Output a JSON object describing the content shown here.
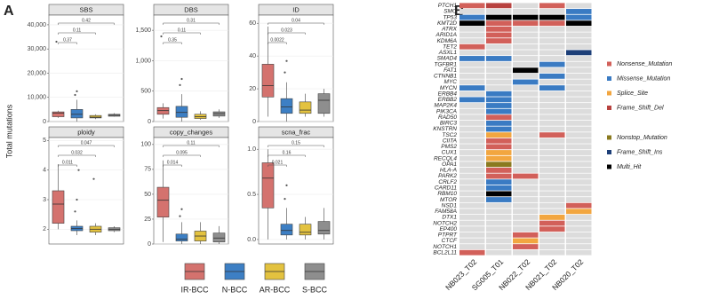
{
  "panel_labels": [
    "A",
    "B"
  ],
  "y_label": "Total mutations",
  "legend": [
    {
      "name": "IR-BCC",
      "color": "#d4726e"
    },
    {
      "name": "N-BCC",
      "color": "#3d7fc4"
    },
    {
      "name": "AR-BCC",
      "color": "#e3c23f"
    },
    {
      "name": "S-BCC",
      "color": "#8e8e8e"
    }
  ],
  "chart_data": [
    {
      "type": "box",
      "title": "SBS",
      "ylim": [
        0,
        44000
      ],
      "yticks": [
        0,
        {
          "value": 10000,
          "label": "10,000"
        },
        {
          "value": 20000,
          "label": "20,000"
        },
        {
          "value": 30000,
          "label": "30,000"
        },
        {
          "value": 40000,
          "label": "40,000"
        }
      ],
      "boxes": [
        {
          "min": 1500,
          "q1": 2000,
          "median": 3500,
          "q3": 4000,
          "max": 4500,
          "outliers": [
            33000
          ]
        },
        {
          "min": 0,
          "q1": 1500,
          "median": 3000,
          "q3": 5000,
          "max": 9000,
          "outliers": [
            11000,
            12500
          ]
        },
        {
          "min": 1000,
          "q1": 1500,
          "median": 1800,
          "q3": 2500,
          "max": 3000,
          "outliers": []
        },
        {
          "min": 2000,
          "q1": 2200,
          "median": 2600,
          "q3": 3000,
          "max": 3500,
          "outliers": []
        }
      ],
      "pvalues": [
        "0.37",
        "0.11",
        "0.42"
      ]
    },
    {
      "type": "box",
      "title": "DBS",
      "ylim": [
        0,
        1750
      ],
      "yticks": [
        0,
        500,
        {
          "value": 1000,
          "label": "1,000"
        },
        {
          "value": 1500,
          "label": "1,500"
        }
      ],
      "boxes": [
        {
          "min": 50,
          "q1": 120,
          "median": 180,
          "q3": 230,
          "max": 300,
          "outliers": [
            1400
          ]
        },
        {
          "min": 0,
          "q1": 70,
          "median": 150,
          "q3": 250,
          "max": 450,
          "outliers": [
            600,
            700
          ]
        },
        {
          "min": 30,
          "q1": 50,
          "median": 80,
          "q3": 120,
          "max": 170,
          "outliers": []
        },
        {
          "min": 60,
          "q1": 90,
          "median": 130,
          "q3": 160,
          "max": 200,
          "outliers": []
        }
      ],
      "pvalues": [
        "0.35",
        "0.11",
        "0.31"
      ]
    },
    {
      "type": "box",
      "title": "ID",
      "ylim": [
        0,
        65
      ],
      "yticks": [
        0,
        20,
        40,
        60
      ],
      "boxes": [
        {
          "min": 3,
          "q1": 15,
          "median": 22,
          "q3": 35,
          "max": 58,
          "outliers": []
        },
        {
          "min": 0,
          "q1": 5,
          "median": 9,
          "q3": 14,
          "max": 24,
          "outliers": [
            30,
            37
          ]
        },
        {
          "min": 3,
          "q1": 5,
          "median": 7,
          "q3": 12,
          "max": 17,
          "outliers": []
        },
        {
          "min": 3,
          "q1": 5,
          "median": 13,
          "q3": 17,
          "max": 20,
          "outliers": []
        }
      ],
      "pvalues": [
        "0.0022",
        "0.023",
        "0.04"
      ]
    },
    {
      "type": "box",
      "title": "ploidy",
      "ylim": [
        1.5,
        5.1
      ],
      "yticks": [
        2,
        3,
        4,
        5
      ],
      "boxes": [
        {
          "min": 2.0,
          "q1": 2.2,
          "median": 2.85,
          "q3": 3.3,
          "max": 4.2,
          "outliers": []
        },
        {
          "min": 1.8,
          "q1": 1.95,
          "median": 2.02,
          "q3": 2.1,
          "max": 2.3,
          "outliers": [
            2.6,
            3.0,
            4.0
          ]
        },
        {
          "min": 1.8,
          "q1": 1.9,
          "median": 2.0,
          "q3": 2.1,
          "max": 2.2,
          "outliers": [
            3.7
          ]
        },
        {
          "min": 1.9,
          "q1": 1.95,
          "median": 2.0,
          "q3": 2.05,
          "max": 2.1,
          "outliers": []
        }
      ],
      "pvalues": [
        "0.011",
        "0.032",
        "0.047"
      ]
    },
    {
      "type": "box",
      "title": "copy_changes",
      "ylim": [
        0,
        107
      ],
      "yticks": [
        0,
        25,
        50,
        75,
        100
      ],
      "boxes": [
        {
          "min": 2,
          "q1": 27,
          "median": 44,
          "q3": 57,
          "max": 84,
          "outliers": []
        },
        {
          "min": 0,
          "q1": 3,
          "median": 5,
          "q3": 10,
          "max": 22,
          "outliers": [
            28,
            35
          ]
        },
        {
          "min": 0,
          "q1": 3,
          "median": 8,
          "q3": 13,
          "max": 22,
          "outliers": []
        },
        {
          "min": 0,
          "q1": 2,
          "median": 6,
          "q3": 11,
          "max": 18,
          "outliers": []
        }
      ],
      "pvalues": [
        "0.014",
        "0.095",
        "0.11"
      ]
    },
    {
      "type": "box",
      "title": "scna_frac",
      "ylim": [
        -0.05,
        1.13
      ],
      "yticks": [
        {
          "value": 0,
          "label": "0.0"
        },
        0.5,
        {
          "value": 1,
          "label": "1.0"
        }
      ],
      "boxes": [
        {
          "min": 0.0,
          "q1": 0.35,
          "median": 0.68,
          "q3": 0.85,
          "max": 1.0,
          "outliers": []
        },
        {
          "min": 0,
          "q1": 0.05,
          "median": 0.1,
          "q3": 0.17,
          "max": 0.35,
          "outliers": [
            0.45,
            0.6
          ]
        },
        {
          "min": 0,
          "q1": 0.05,
          "median": 0.08,
          "q3": 0.17,
          "max": 0.25,
          "outliers": []
        },
        {
          "min": 0,
          "q1": 0.06,
          "median": 0.1,
          "q3": 0.2,
          "max": 0.35,
          "outliers": []
        }
      ],
      "pvalues": [
        "0.021",
        "0.16",
        "0.15"
      ]
    },
    {
      "type": "heatmap",
      "columns": [
        "NB023_T02",
        "SG005_T01",
        "NB022_T02",
        "NB021_T02",
        "NB020_T02"
      ],
      "rows": [
        "PTCH1",
        "SMO",
        "TP53",
        "KMT2D",
        "ATRX",
        "ARID1A",
        "KDM6A",
        "TET2",
        "ASXL1",
        "SMAD4",
        "TGFBR1",
        "FAT1",
        "CTNNB1",
        "MYC",
        "MYCN",
        "ERBB4",
        "ERBB2",
        "MAP2K4",
        "PIK3CA",
        "RAD50",
        "BIRC3",
        "KNSTRN",
        "TSC2",
        "CIITA",
        "PMS2",
        "CUX1",
        "RECQL4",
        "OPA1",
        "HLA-A",
        "PARK2",
        "CRLF2",
        "CARD11",
        "RBM10",
        "MTOR",
        "NSD1",
        "FAM58A",
        "DTX1",
        "NOTCH2",
        "EP400",
        "PTPRT",
        "CTCF",
        "NOTCH1",
        "BCL2L11"
      ],
      "empty_color": "#dcdcdc",
      "legend": [
        {
          "name": "Nonsense_Mutation",
          "color": "#d2605a"
        },
        {
          "name": "Missense_Mutation",
          "color": "#3a7bc3"
        },
        {
          "name": "Splice_Site",
          "color": "#f2a640"
        },
        {
          "name": "Frame_Shift_Del",
          "color": "#b8423f"
        },
        {
          "name": "Nonstop_Mutation",
          "color": "#8a7a1f"
        },
        {
          "name": "Frame_Shift_Ins",
          "color": "#1d3f78"
        },
        {
          "name": "Multi_Hit",
          "color": "#000000"
        }
      ],
      "cells": [
        [
          "Nonsense_Mutation",
          "Frame_Shift_Del",
          null,
          "Nonsense_Mutation",
          null
        ],
        [
          null,
          null,
          null,
          null,
          "Missense_Mutation"
        ],
        [
          "Missense_Mutation",
          "Multi_Hit",
          "Multi_Hit",
          "Multi_Hit",
          "Missense_Mutation"
        ],
        [
          "Multi_Hit",
          "Nonsense_Mutation",
          "Nonsense_Mutation",
          "Nonsense_Mutation",
          "Multi_Hit"
        ],
        [
          null,
          "Nonsense_Mutation",
          null,
          null,
          null
        ],
        [
          null,
          "Nonsense_Mutation",
          null,
          null,
          null
        ],
        [
          null,
          "Nonsense_Mutation",
          null,
          null,
          null
        ],
        [
          "Nonsense_Mutation",
          null,
          null,
          null,
          null
        ],
        [
          null,
          null,
          null,
          null,
          "Frame_Shift_Ins"
        ],
        [
          "Missense_Mutation",
          "Missense_Mutation",
          null,
          null,
          null
        ],
        [
          null,
          null,
          null,
          "Missense_Mutation",
          null
        ],
        [
          null,
          null,
          "Multi_Hit",
          null,
          null
        ],
        [
          null,
          null,
          null,
          "Missense_Mutation",
          null
        ],
        [
          null,
          null,
          "Missense_Mutation",
          null,
          null
        ],
        [
          "Missense_Mutation",
          null,
          null,
          "Missense_Mutation",
          null
        ],
        [
          null,
          "Missense_Mutation",
          null,
          null,
          null
        ],
        [
          "Missense_Mutation",
          "Missense_Mutation",
          null,
          null,
          null
        ],
        [
          null,
          "Missense_Mutation",
          null,
          null,
          null
        ],
        [
          null,
          "Missense_Mutation",
          null,
          null,
          null
        ],
        [
          null,
          "Nonsense_Mutation",
          null,
          null,
          null
        ],
        [
          null,
          "Missense_Mutation",
          null,
          null,
          null
        ],
        [
          null,
          "Missense_Mutation",
          null,
          null,
          null
        ],
        [
          null,
          "Splice_Site",
          null,
          "Nonsense_Mutation",
          null
        ],
        [
          null,
          "Nonsense_Mutation",
          null,
          null,
          null
        ],
        [
          null,
          "Nonsense_Mutation",
          null,
          null,
          null
        ],
        [
          null,
          "Splice_Site",
          null,
          null,
          null
        ],
        [
          null,
          "Splice_Site",
          null,
          null,
          null
        ],
        [
          null,
          "Nonstop_Mutation",
          null,
          null,
          null
        ],
        [
          null,
          "Nonsense_Mutation",
          null,
          null,
          null
        ],
        [
          null,
          "Nonsense_Mutation",
          "Nonsense_Mutation",
          null,
          null
        ],
        [
          null,
          "Missense_Mutation",
          null,
          null,
          null
        ],
        [
          null,
          "Missense_Mutation",
          null,
          null,
          null
        ],
        [
          null,
          "Multi_Hit",
          null,
          null,
          null
        ],
        [
          null,
          "Missense_Mutation",
          null,
          null,
          null
        ],
        [
          null,
          null,
          null,
          null,
          "Nonsense_Mutation"
        ],
        [
          null,
          null,
          null,
          null,
          "Splice_Site"
        ],
        [
          null,
          null,
          null,
          "Splice_Site",
          null
        ],
        [
          null,
          null,
          null,
          "Nonsense_Mutation",
          null
        ],
        [
          null,
          null,
          null,
          "Nonsense_Mutation",
          null
        ],
        [
          null,
          null,
          "Nonsense_Mutation",
          null,
          null
        ],
        [
          null,
          null,
          "Splice_Site",
          null,
          null
        ],
        [
          null,
          null,
          "Nonsense_Mutation",
          null,
          null
        ],
        [
          "Nonsense_Mutation",
          null,
          null,
          null,
          null
        ]
      ]
    }
  ]
}
